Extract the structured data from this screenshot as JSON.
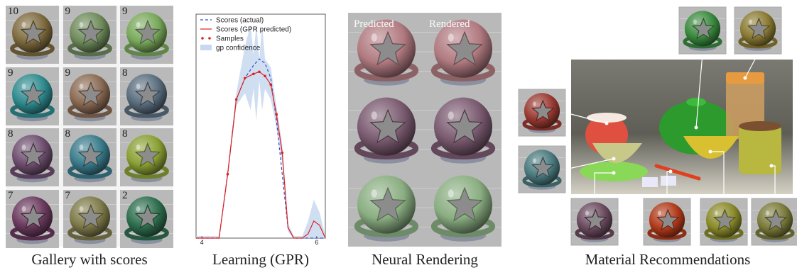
{
  "captions": {
    "gallery": "Gallery with scores",
    "learning": "Learning (GPR)",
    "neural": "Neural Rendering",
    "reco": "Material Recommendations"
  },
  "gallery": {
    "cells": [
      {
        "score": "10",
        "color": "#7d6a3e"
      },
      {
        "score": "9",
        "color": "#6e8a5a"
      },
      {
        "score": "9",
        "color": "#78a85a"
      },
      {
        "score": "9",
        "color": "#2e8a8e"
      },
      {
        "score": "9",
        "color": "#8a6a54"
      },
      {
        "score": "8",
        "color": "#5a6e7e"
      },
      {
        "score": "8",
        "color": "#6e4e6e"
      },
      {
        "score": "8",
        "color": "#3a7a8a"
      },
      {
        "score": "8",
        "color": "#8aa034"
      },
      {
        "score": "7",
        "color": "#6a3a5e"
      },
      {
        "score": "7",
        "color": "#7e7a4a"
      },
      {
        "score": "2",
        "color": "#2e6e4e"
      }
    ]
  },
  "neural": {
    "predicted_label": "Predicted",
    "rendered_label": "Rendered",
    "rows": [
      {
        "color": "#b07a80"
      },
      {
        "color": "#7a5a70"
      },
      {
        "color": "#8aae82"
      }
    ]
  },
  "reco": {
    "thumbs": [
      {
        "name": "top-1",
        "color": "#3a8a3e"
      },
      {
        "name": "top-2",
        "color": "#8a7a32"
      },
      {
        "name": "left-1",
        "color": "#9a3a32"
      },
      {
        "name": "left-2",
        "color": "#4a7a7e"
      },
      {
        "name": "bottom-1",
        "color": "#6a4a5e"
      },
      {
        "name": "bottom-2",
        "color": "#b03a1a"
      },
      {
        "name": "bottom-3",
        "color": "#8a8a2a"
      },
      {
        "name": "bottom-4",
        "color": "#7a7a3a"
      }
    ]
  },
  "chart_data": {
    "type": "line",
    "title": "",
    "xlabel": "",
    "ylabel": "",
    "xlim": [
      3.9,
      6.15
    ],
    "ylim": [
      0,
      1.05
    ],
    "x_ticks": [
      "4",
      "6"
    ],
    "legend": {
      "placement": "top-left",
      "entries": [
        "Scores (actual)",
        "Scores (GPR predicted)",
        "Samples",
        "gp confidence"
      ]
    },
    "series": [
      {
        "name": "Scores (actual)",
        "style": "dashed",
        "color": "#3050c8",
        "x": [
          3.9,
          4.3,
          4.45,
          4.6,
          4.75,
          4.9,
          5.0,
          5.1,
          5.2,
          5.3,
          5.4,
          5.5,
          5.6,
          5.7,
          5.75,
          5.9,
          6.15
        ],
        "y": [
          0,
          0,
          0.3,
          0.65,
          0.75,
          0.81,
          0.84,
          0.82,
          0.75,
          0.55,
          0.3,
          0.05,
          0,
          0,
          0,
          0,
          0
        ]
      },
      {
        "name": "Scores (GPR predicted)",
        "style": "solid",
        "color": "#e02020",
        "x": [
          3.9,
          4.3,
          4.45,
          4.6,
          4.75,
          4.9,
          5.0,
          5.1,
          5.2,
          5.3,
          5.4,
          5.5,
          5.6,
          5.75,
          5.85,
          5.95,
          6.05,
          6.15
        ],
        "y": [
          0,
          0,
          0.3,
          0.65,
          0.75,
          0.77,
          0.78,
          0.76,
          0.72,
          0.58,
          0.4,
          0.05,
          0,
          0,
          0.02,
          0.08,
          0.06,
          0
        ]
      }
    ],
    "samples": {
      "name": "Samples",
      "color": "#e02020",
      "x": [
        4.45,
        4.6,
        4.75,
        4.9,
        5.0,
        5.1,
        5.2,
        5.3,
        5.4
      ],
      "y": [
        0.3,
        0.65,
        0.75,
        0.77,
        0.78,
        0.76,
        0.72,
        0.58,
        0.4
      ]
    },
    "confidence": {
      "name": "gp confidence",
      "color": "#c8d8f0",
      "x": [
        3.9,
        4.3,
        4.45,
        4.6,
        4.75,
        4.85,
        4.9,
        4.95,
        5.0,
        5.05,
        5.1,
        5.2,
        5.3,
        5.4,
        5.5,
        5.6,
        5.75,
        5.85,
        5.95,
        6.05,
        6.15
      ],
      "lower": [
        0,
        0,
        0.28,
        0.62,
        0.68,
        0.6,
        0.7,
        0.55,
        0.74,
        0.6,
        0.7,
        0.65,
        0.52,
        0.35,
        0.03,
        0,
        0,
        0,
        0,
        0,
        0
      ],
      "upper": [
        0.01,
        0.01,
        0.32,
        0.68,
        0.9,
        1.0,
        0.86,
        1.0,
        0.84,
        1.0,
        0.84,
        0.8,
        0.62,
        0.44,
        0.07,
        0.01,
        0.01,
        0.08,
        0.18,
        0.12,
        0.01
      ]
    }
  }
}
